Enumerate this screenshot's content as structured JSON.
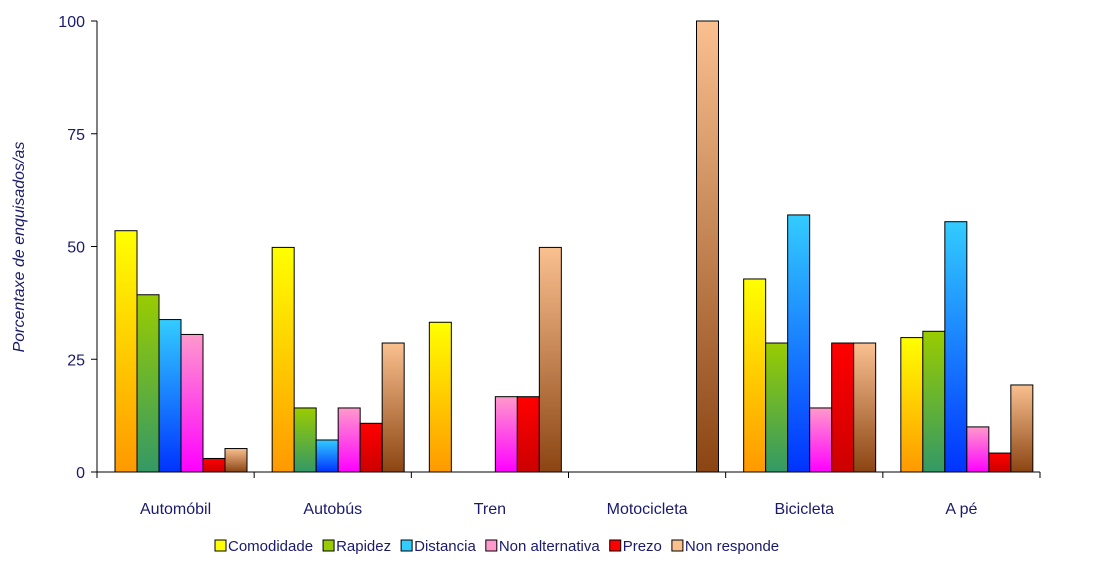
{
  "chart_data": {
    "type": "bar",
    "title": "",
    "xlabel": "",
    "ylabel": "Porcentaxe de enquisados/as",
    "ylim": [
      0,
      100
    ],
    "yticks": [
      0,
      25,
      50,
      75,
      100
    ],
    "grid": false,
    "legend_position": "bottom",
    "categories": [
      "Automóbil",
      "Autobús",
      "Tren",
      "Motocicleta",
      "Bicicleta",
      "A pé"
    ],
    "series": [
      {
        "name": "Comodidade",
        "color_top": "#ffff00",
        "color_bottom": "#ff9900",
        "values": [
          53.5,
          49.8,
          33.2,
          0,
          42.8,
          29.8
        ]
      },
      {
        "name": "Rapidez",
        "color_top": "#99cc00",
        "color_bottom": "#339966",
        "values": [
          39.3,
          14.2,
          0,
          0,
          28.6,
          31.2
        ]
      },
      {
        "name": "Distancia",
        "color_top": "#33ccff",
        "color_bottom": "#0033ff",
        "values": [
          33.8,
          7.1,
          0,
          0,
          57.0,
          55.5
        ]
      },
      {
        "name": "Non alternativa",
        "color_top": "#ff99cc",
        "color_bottom": "#ff00ff",
        "values": [
          30.5,
          14.2,
          16.7,
          0,
          14.2,
          10.0
        ]
      },
      {
        "name": "Prezo",
        "color_top": "#ff0000",
        "color_bottom": "#cc0000",
        "values": [
          3.0,
          10.8,
          16.7,
          0,
          28.6,
          4.2
        ]
      },
      {
        "name": "Non responde",
        "color_top": "#fac090",
        "color_bottom": "#8b4513",
        "values": [
          5.2,
          28.6,
          49.8,
          100,
          28.6,
          19.3
        ]
      }
    ]
  }
}
